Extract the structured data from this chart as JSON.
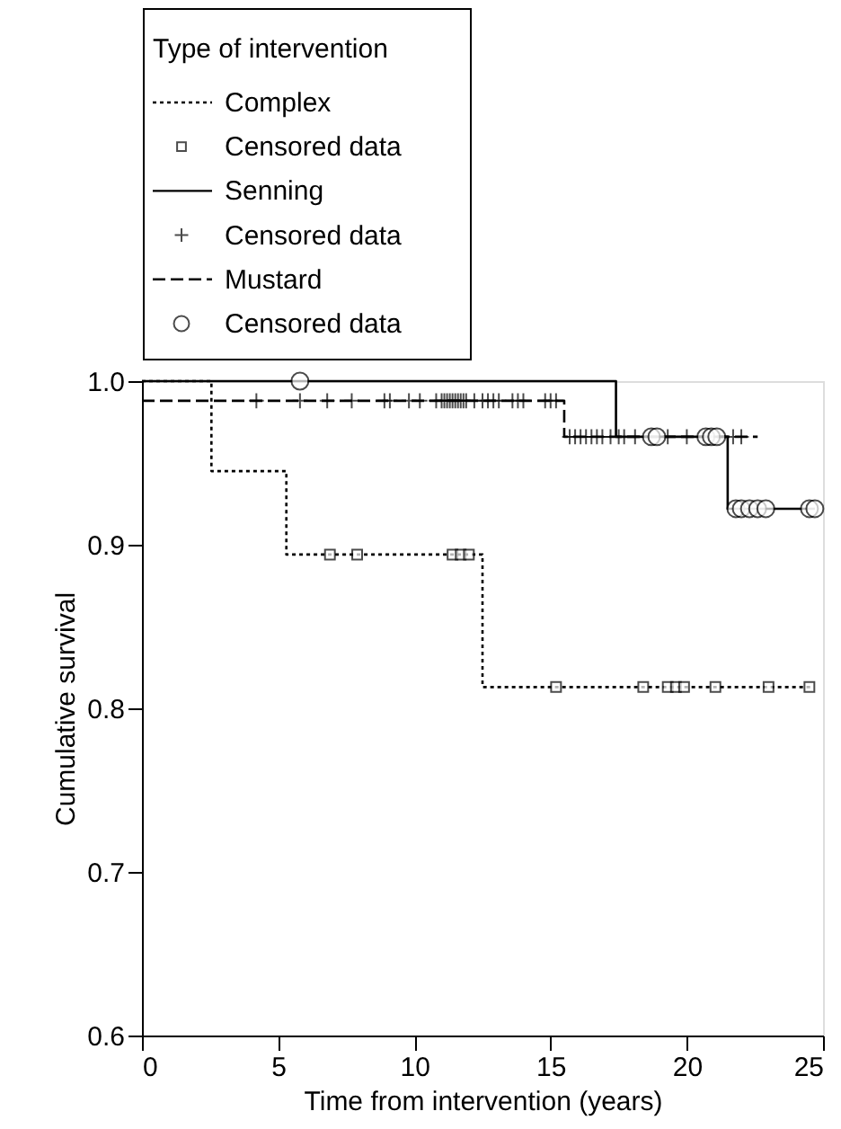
{
  "chart_data": {
    "type": "step",
    "xlabel": "Time from intervention (years)",
    "ylabel": "Cumulative survival",
    "legend_title": "Type of intervention",
    "legend": "top left",
    "grid": false,
    "xlim": [
      0,
      25
    ],
    "ylim": [
      0.6,
      1.0
    ],
    "xticks": [
      0,
      5,
      10,
      15,
      20,
      25
    ],
    "yticks": [
      0.6,
      0.7,
      0.8,
      0.9,
      {
        "value": 1.0,
        "label": "1.0"
      }
    ],
    "series": [
      {
        "name": "Complex",
        "color": "#000000",
        "line_style": "dotted",
        "x": [
          0,
          2.55,
          5.3,
          12.5,
          24.6
        ],
        "values": [
          1.0,
          0.945,
          0.894,
          0.813,
          0.813
        ]
      },
      {
        "name": "Censored data",
        "type": "scatter",
        "color": "#000000",
        "marker": "square",
        "x": [
          6.9,
          7.9,
          11.4,
          11.7,
          12.0,
          15.2,
          18.4,
          19.3,
          19.6,
          19.9,
          21.05,
          23.0,
          24.5
        ],
        "values": [
          0.894,
          0.894,
          0.894,
          0.894,
          0.894,
          0.813,
          0.813,
          0.813,
          0.813,
          0.813,
          0.813,
          0.813,
          0.813
        ]
      },
      {
        "name": "Senning",
        "color": "#000000",
        "line_style": "solid",
        "x": [
          0,
          17.4,
          21.5,
          24.7
        ],
        "values": [
          1.0,
          0.966,
          0.922,
          0.922
        ]
      },
      {
        "name": "Censored data",
        "type": "scatter",
        "color": "#000000",
        "marker": "cross",
        "x": [
          4.2,
          5.8,
          6.8,
          7.7,
          8.9,
          9.1,
          9.8,
          10.2,
          10.8,
          11.0,
          11.1,
          11.2,
          11.3,
          11.4,
          11.5,
          11.6,
          11.7,
          11.8,
          11.9,
          12.2,
          12.5,
          12.7,
          12.9,
          13.1,
          13.6,
          13.8,
          14.0,
          14.8,
          15.0,
          15.2,
          15.7,
          15.9,
          16.1,
          16.3,
          16.5,
          16.7,
          16.9,
          17.2,
          17.5,
          17.7,
          18.1,
          19.1,
          19.3,
          20.0,
          21.7,
          22.0
        ],
        "values": [
          0.988,
          0.988,
          0.988,
          0.988,
          0.988,
          0.988,
          0.988,
          0.988,
          0.988,
          0.988,
          0.988,
          0.988,
          0.988,
          0.988,
          0.988,
          0.988,
          0.988,
          0.988,
          0.988,
          0.988,
          0.988,
          0.988,
          0.988,
          0.988,
          0.988,
          0.988,
          0.988,
          0.988,
          0.988,
          0.988,
          0.966,
          0.966,
          0.966,
          0.966,
          0.966,
          0.966,
          0.966,
          0.966,
          0.966,
          0.966,
          0.966,
          null,
          0.966,
          0.966,
          0.966,
          0.966
        ]
      },
      {
        "name": "Mustard",
        "color": "#000000",
        "line_style": "dashed",
        "x": [
          0,
          15.5,
          22.6
        ],
        "values": [
          0.988,
          0.966,
          0.966
        ]
      },
      {
        "name": "Censored data",
        "type": "scatter",
        "color": "#000000",
        "marker": "circle",
        "x": [
          5.8,
          18.7,
          18.9,
          20.7,
          20.9,
          21.1,
          21.8,
          22.0,
          22.3,
          22.6,
          22.9,
          24.5,
          24.7
        ],
        "values": [
          1.0,
          0.966,
          0.966,
          0.966,
          0.966,
          0.966,
          0.922,
          0.922,
          0.922,
          0.922,
          0.922,
          0.922,
          0.922
        ]
      }
    ]
  }
}
